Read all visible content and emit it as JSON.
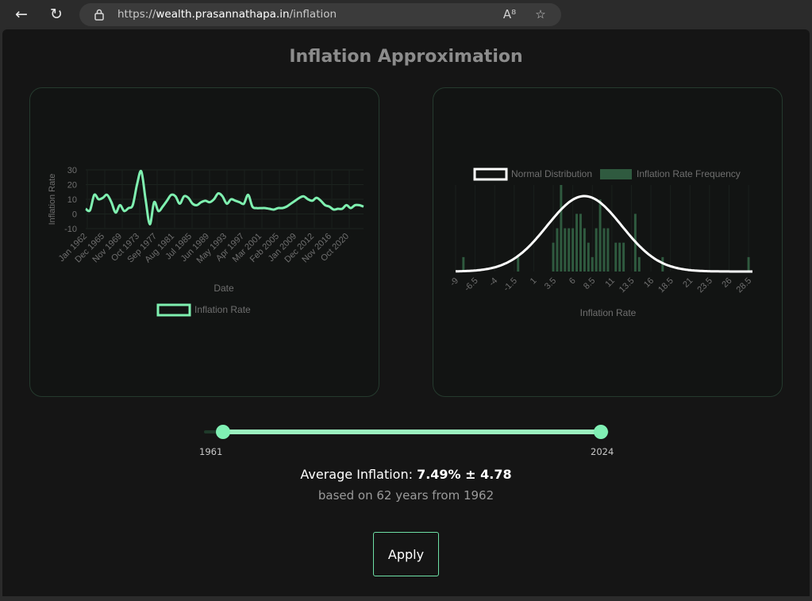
{
  "browser": {
    "url_prefix": "https://",
    "url_host": "wealth.prasannathapa.in",
    "url_path": "/inflation",
    "icons": [
      "back-arrow-icon",
      "reload-icon",
      "lock-icon",
      "read-aloud-icon",
      "favorite-star-icon"
    ]
  },
  "page": {
    "title": "Inflation Approximation"
  },
  "chart_data": [
    {
      "type": "line",
      "xlabel": "Date",
      "ylabel": "Inflation Rate",
      "y_ticks": [
        "30",
        "20",
        "10",
        "0",
        "-10"
      ],
      "ylim": [
        -10,
        30
      ],
      "x_tick_labels": [
        "Jan 1962",
        "Dec 1965",
        "Nov 1969",
        "Oct 1973",
        "Sep 1977",
        "Aug 1981",
        "Jul 1985",
        "Jun 1989",
        "May 1993",
        "Apr 1997",
        "Mar 2001",
        "Feb 2005",
        "Jan 2009",
        "Dec 2012",
        "Nov 2016",
        "Oct 2020"
      ],
      "legend": [
        "Inflation Rate"
      ],
      "legend_position": "bottom",
      "series": [
        {
          "name": "Inflation Rate",
          "color": "#7ff0b0",
          "values": [
            3.5,
            2.5,
            13,
            10,
            11,
            13,
            8,
            1,
            6,
            2,
            4,
            6,
            20,
            29,
            10,
            -7,
            8,
            2,
            5,
            9,
            13,
            12,
            7,
            12,
            11,
            7,
            6,
            8,
            9,
            8,
            10,
            14,
            12,
            7,
            10,
            9,
            8,
            7,
            13,
            5,
            4,
            4,
            4,
            3.5,
            3,
            4,
            4,
            5,
            7,
            9,
            11,
            12,
            10,
            9,
            11,
            9,
            6,
            5,
            3,
            3.5,
            3.5,
            6,
            4,
            6,
            6,
            5
          ]
        }
      ]
    },
    {
      "type": "bar",
      "xlabel": "Inflation Rate",
      "x_tick_labels": [
        "-9",
        "-6.5",
        "-4",
        "-1.5",
        "1",
        "3.5",
        "6",
        "8.5",
        "11",
        "13.5",
        "16",
        "18.5",
        "21",
        "23.5",
        "26",
        "28.5"
      ],
      "legend": [
        "Normal Distribution",
        "Inflation Rate Frequency"
      ],
      "legend_position": "top",
      "series": [
        {
          "name": "Inflation Rate Frequency",
          "color": "#2f5a3f",
          "bins": [
            -9,
            -8.5,
            -8,
            -7.5,
            -7,
            -6.5,
            -6,
            -5.5,
            -5,
            -4.5,
            -4,
            -3.5,
            -3,
            -2.5,
            -2,
            -1.5,
            -1,
            -0.5,
            0,
            0.5,
            1,
            1.5,
            2,
            2.5,
            3,
            3.5,
            4,
            4.5,
            5,
            5.5,
            6,
            6.5,
            7,
            7.5,
            8,
            8.5,
            9,
            9.5,
            10,
            10.5,
            11,
            11.5,
            12,
            12.5,
            13,
            13.5,
            14,
            14.5,
            15,
            15.5,
            16,
            16.5,
            17,
            17.5,
            18,
            18.5,
            19,
            19.5,
            20,
            20.5,
            21,
            21.5,
            22,
            22.5,
            23,
            23.5,
            24,
            24.5,
            25,
            25.5,
            26,
            26.5,
            27,
            27.5,
            28,
            28.5,
            29
          ],
          "values": [
            0,
            0,
            1,
            0,
            0,
            0,
            0,
            0,
            0,
            0,
            0,
            0,
            0,
            0,
            0,
            0,
            1,
            0,
            0,
            0,
            0,
            0,
            0,
            0,
            0,
            2,
            3,
            6,
            3,
            3,
            3,
            4,
            4,
            3,
            2,
            1,
            3,
            5,
            3,
            3,
            0,
            2,
            2,
            2,
            0,
            0,
            4,
            1,
            0,
            0,
            0,
            0,
            0,
            1,
            0,
            0,
            0,
            0,
            0,
            0,
            0,
            0,
            0,
            0,
            0,
            0,
            0,
            0,
            0,
            0,
            0,
            0,
            0,
            0,
            0,
            1,
            0
          ]
        },
        {
          "name": "Normal Distribution",
          "color": "#ffffff",
          "mean": 7.49,
          "std": 4.78
        }
      ]
    }
  ],
  "range_slider": {
    "min_label": "1961",
    "max_label": "2024"
  },
  "summary": {
    "avg_label": "Average Inflation: ",
    "avg_value": "7.49% ± 4.78",
    "based_on": "based on 62 years from 1962"
  },
  "apply_button": {
    "label": "Apply"
  }
}
